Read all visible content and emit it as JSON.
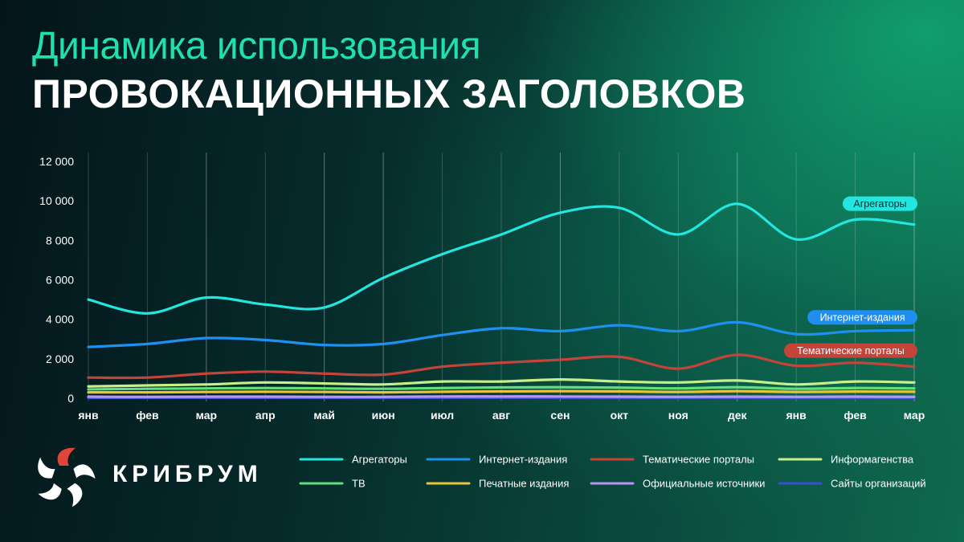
{
  "header": {
    "title_line1": "Динамика использования",
    "title_line2": "ПРОВОКАЦИОННЫХ ЗАГОЛОВКОВ"
  },
  "brand": {
    "name": "КРИБРУМ"
  },
  "colors": {
    "title_accent": "#21e0b0",
    "grid_line": "#ffffff"
  },
  "chart_data": {
    "type": "line",
    "title": "Динамика использования ПРОВОКАЦИОННЫХ ЗАГОЛОВКОВ",
    "xlabel": "",
    "ylabel": "",
    "ylim": [
      0,
      12000
    ],
    "y_ticks": [
      0,
      2000,
      4000,
      6000,
      8000,
      10000,
      12000
    ],
    "y_tick_labels": [
      "0",
      "2 000",
      "4 000",
      "6 000",
      "8 000",
      "10 000",
      "12 000"
    ],
    "categories": [
      "янв",
      "фев",
      "мар",
      "апр",
      "май",
      "июн",
      "июл",
      "авг",
      "сен",
      "окт",
      "ноя",
      "дек",
      "янв",
      "фев",
      "мар"
    ],
    "legend_placement": "bottom",
    "grid": "vertical",
    "series": [
      {
        "name": "Агрегаторы",
        "color": "#22e6e0",
        "label": "Агрегаторы",
        "label_bg": "#22e6e0",
        "label_color": "#0a2a2a",
        "values": [
          5000,
          4300,
          5100,
          4750,
          4600,
          6100,
          7300,
          8300,
          9400,
          9650,
          8300,
          9850,
          8050,
          9050,
          8800
        ]
      },
      {
        "name": "Интернет-издания",
        "color": "#1e90f0",
        "label": "Интернет-издания",
        "label_bg": "#1e8ff0",
        "label_color": "#ffffff",
        "values": [
          2600,
          2750,
          3050,
          2950,
          2700,
          2750,
          3200,
          3550,
          3400,
          3700,
          3400,
          3850,
          3250,
          3400,
          3450
        ]
      },
      {
        "name": "Тематические порталы",
        "color": "#c4443a",
        "label": "Тематические порталы",
        "label_bg": "#c4443a",
        "label_color": "#ffffff",
        "values": [
          1050,
          1050,
          1250,
          1350,
          1250,
          1200,
          1600,
          1800,
          1950,
          2100,
          1500,
          2200,
          1650,
          1800,
          1600
        ]
      },
      {
        "name": "Информагенства",
        "color": "#c8f08a",
        "values": [
          600,
          650,
          700,
          800,
          750,
          700,
          850,
          850,
          950,
          850,
          800,
          900,
          700,
          850,
          800
        ]
      },
      {
        "name": "ТВ",
        "color": "#5fe07a",
        "values": [
          450,
          480,
          500,
          520,
          500,
          480,
          520,
          550,
          560,
          540,
          500,
          560,
          480,
          520,
          500
        ]
      },
      {
        "name": "Печатные издания",
        "color": "#e8c43a",
        "values": [
          300,
          300,
          320,
          330,
          320,
          300,
          330,
          350,
          360,
          350,
          320,
          360,
          320,
          340,
          330
        ]
      },
      {
        "name": "Официальные источники",
        "color": "#b695f5",
        "values": [
          80,
          70,
          80,
          80,
          70,
          70,
          90,
          90,
          90,
          80,
          70,
          80,
          70,
          80,
          70
        ]
      },
      {
        "name": "Сайты организаций",
        "color": "#3a4fd0",
        "values": [
          20,
          20,
          25,
          25,
          20,
          20,
          25,
          25,
          25,
          25,
          20,
          25,
          20,
          25,
          20
        ]
      }
    ]
  }
}
